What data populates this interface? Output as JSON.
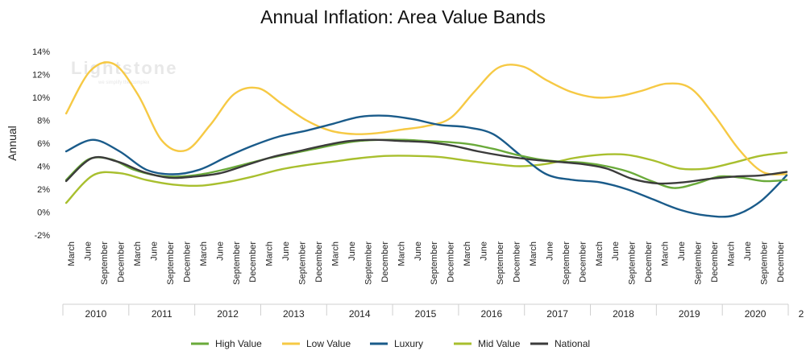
{
  "chart_data": {
    "type": "line",
    "title": "Annual Inflation: Area Value Bands",
    "ylabel": "Annual",
    "xlabel": "",
    "ylim": [
      -2,
      14
    ],
    "yticks": [
      "-2%",
      "0%",
      "2%",
      "4%",
      "6%",
      "8%",
      "10%",
      "12%",
      "14%"
    ],
    "ytick_values": [
      -2,
      0,
      2,
      4,
      6,
      8,
      10,
      12,
      14
    ],
    "months": [
      "March",
      "June",
      "September",
      "December"
    ],
    "years": [
      "2010",
      "2011",
      "2012",
      "2013",
      "2014",
      "2015",
      "2016",
      "2017",
      "2018",
      "2019",
      "2020",
      "2"
    ],
    "watermark": "Lightstone",
    "watermark_tagline": "we simplify the complex",
    "legend_position": "bottom",
    "grid": false,
    "series": [
      {
        "name": "High Value",
        "color": "#6aaa3a",
        "values": [
          2.8,
          4.6,
          4.6,
          3.7,
          3.2,
          3.1,
          3.3,
          3.7,
          4.2,
          4.7,
          5.1,
          5.5,
          5.9,
          6.2,
          6.3,
          6.3,
          6.2,
          6.1,
          5.9,
          5.5,
          5.0,
          4.6,
          4.4,
          4.3,
          4.0,
          3.5,
          2.7,
          2.1,
          2.5,
          3.1,
          3.0,
          2.7,
          2.8
        ]
      },
      {
        "name": "Low Value",
        "color": "#f6c944",
        "values": [
          8.6,
          12.3,
          12.9,
          10.2,
          6.2,
          5.4,
          7.6,
          10.3,
          10.8,
          9.4,
          8.0,
          7.1,
          6.8,
          6.9,
          7.2,
          7.5,
          8.2,
          10.5,
          12.6,
          12.7,
          11.5,
          10.5,
          10.0,
          10.1,
          10.6,
          11.2,
          10.8,
          8.4,
          5.5,
          3.5,
          3.3
        ]
      },
      {
        "name": "Luxury",
        "color": "#1a5b8a",
        "values": [
          5.3,
          6.3,
          5.3,
          3.7,
          3.3,
          3.7,
          4.8,
          5.8,
          6.6,
          7.1,
          7.7,
          8.3,
          8.4,
          8.1,
          7.6,
          7.4,
          6.8,
          5.0,
          3.3,
          2.8,
          2.6,
          2.0,
          1.1,
          0.2,
          -0.3,
          -0.3,
          0.9,
          3.2
        ]
      },
      {
        "name": "Mid Value",
        "color": "#a8bf2e",
        "values": [
          0.8,
          3.2,
          3.4,
          2.8,
          2.4,
          2.3,
          2.6,
          3.1,
          3.7,
          4.1,
          4.4,
          4.7,
          4.9,
          4.9,
          4.8,
          4.5,
          4.2,
          4.0,
          4.2,
          4.7,
          5.0,
          5.0,
          4.5,
          3.8,
          3.8,
          4.3,
          4.9,
          5.2
        ]
      },
      {
        "name": "National",
        "color": "#3b3b3b",
        "values": [
          2.7,
          4.7,
          4.4,
          3.5,
          3.0,
          3.1,
          3.4,
          4.1,
          4.8,
          5.3,
          5.8,
          6.2,
          6.3,
          6.2,
          6.1,
          5.8,
          5.3,
          4.9,
          4.6,
          4.4,
          4.2,
          3.8,
          2.9,
          2.5,
          2.6,
          2.9,
          3.1,
          3.2,
          3.5
        ]
      }
    ]
  }
}
